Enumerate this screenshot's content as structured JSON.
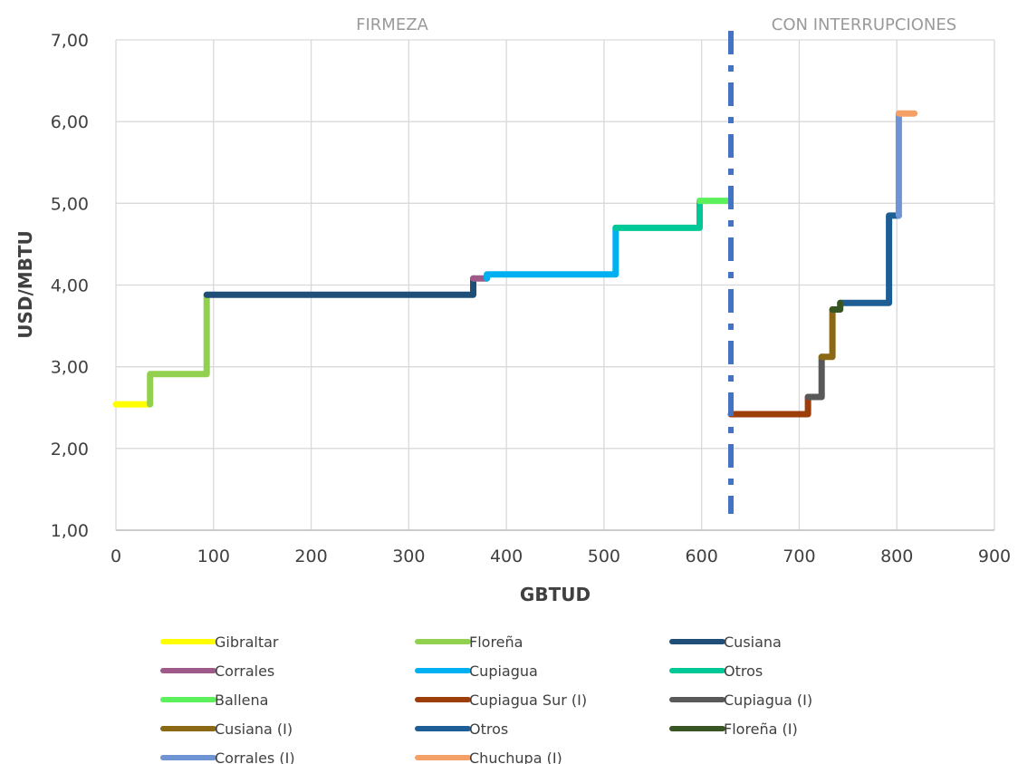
{
  "chart_data": {
    "type": "line",
    "xlabel": "GBTUD",
    "ylabel": "USD/MBTU",
    "xlim": [
      0,
      900
    ],
    "ylim": [
      1,
      7
    ],
    "x_ticks": [
      0,
      100,
      200,
      300,
      400,
      500,
      600,
      700,
      800,
      900
    ],
    "x_tick_labels": [
      "0",
      "100",
      "200",
      "300",
      "400",
      "500",
      "600",
      "700",
      "800",
      "900"
    ],
    "y_ticks": [
      1,
      2,
      3,
      4,
      5,
      6,
      7
    ],
    "y_tick_labels": [
      "1,00",
      "2,00",
      "3,00",
      "4,00",
      "5,00",
      "6,00",
      "7,00"
    ],
    "grid": true,
    "legend_position": "bottom",
    "annotations": [
      {
        "text": "FIRMEZA",
        "x": 282
      },
      {
        "text": "CON INTERRUPCIONES",
        "x": 880
      }
    ],
    "divider": {
      "x": 630,
      "y_range": [
        1.2,
        7
      ],
      "color": "#4472c4",
      "style": "dash-dot"
    },
    "series": [
      {
        "name": "Gibraltar",
        "color": "#ffff00",
        "points": [
          [
            0,
            2.54
          ],
          [
            35,
            2.54
          ]
        ]
      },
      {
        "name": "Floreña",
        "color": "#92d050",
        "points": [
          [
            35,
            2.54
          ],
          [
            35,
            2.91
          ],
          [
            93,
            2.91
          ],
          [
            93,
            3.88
          ]
        ]
      },
      {
        "name": "Cusiana",
        "color": "#1f4e79",
        "points": [
          [
            93,
            3.88
          ],
          [
            366,
            3.88
          ],
          [
            366,
            4.08
          ]
        ]
      },
      {
        "name": "Corrales",
        "color": "#a05a8a",
        "points": [
          [
            366,
            4.08
          ],
          [
            380,
            4.08
          ]
        ]
      },
      {
        "name": "Cupiagua",
        "color": "#00b0f0",
        "points": [
          [
            380,
            4.08
          ],
          [
            380,
            4.13
          ],
          [
            512,
            4.13
          ],
          [
            512,
            4.7
          ]
        ]
      },
      {
        "name": "Otros",
        "color": "#00c896",
        "points": [
          [
            512,
            4.7
          ],
          [
            598,
            4.7
          ],
          [
            598,
            5.03
          ]
        ]
      },
      {
        "name": "Ballena",
        "color": "#5cf05c",
        "points": [
          [
            598,
            5.03
          ],
          [
            628,
            5.03
          ]
        ]
      },
      {
        "name": "Cupiagua Sur (I)",
        "color": "#9c3d0a",
        "points": [
          [
            630,
            2.42
          ],
          [
            709,
            2.42
          ],
          [
            709,
            2.63
          ]
        ]
      },
      {
        "name": "Cupiagua (I)",
        "color": "#595959",
        "points": [
          [
            709,
            2.63
          ],
          [
            723,
            2.63
          ],
          [
            723,
            3.12
          ]
        ]
      },
      {
        "name": "Cusiana (I)",
        "color": "#8b6914",
        "points": [
          [
            723,
            3.12
          ],
          [
            734,
            3.12
          ],
          [
            734,
            3.7
          ]
        ]
      },
      {
        "name": "Otros",
        "color": "#1f5e94",
        "points": [
          [
            742,
            3.78
          ],
          [
            792,
            3.78
          ],
          [
            792,
            4.85
          ],
          [
            802,
            4.85
          ]
        ]
      },
      {
        "name": "Floreña (I)",
        "color": "#375623",
        "points": [
          [
            734,
            3.7
          ],
          [
            742,
            3.7
          ],
          [
            742,
            3.78
          ]
        ]
      },
      {
        "name": "Corrales (I)",
        "color": "#6f94d4",
        "points": [
          [
            802,
            4.85
          ],
          [
            802,
            6.1
          ]
        ]
      },
      {
        "name": "Chuchupa (I)",
        "color": "#f4a066",
        "points": [
          [
            802,
            6.1
          ],
          [
            818,
            6.1
          ]
        ]
      }
    ]
  }
}
